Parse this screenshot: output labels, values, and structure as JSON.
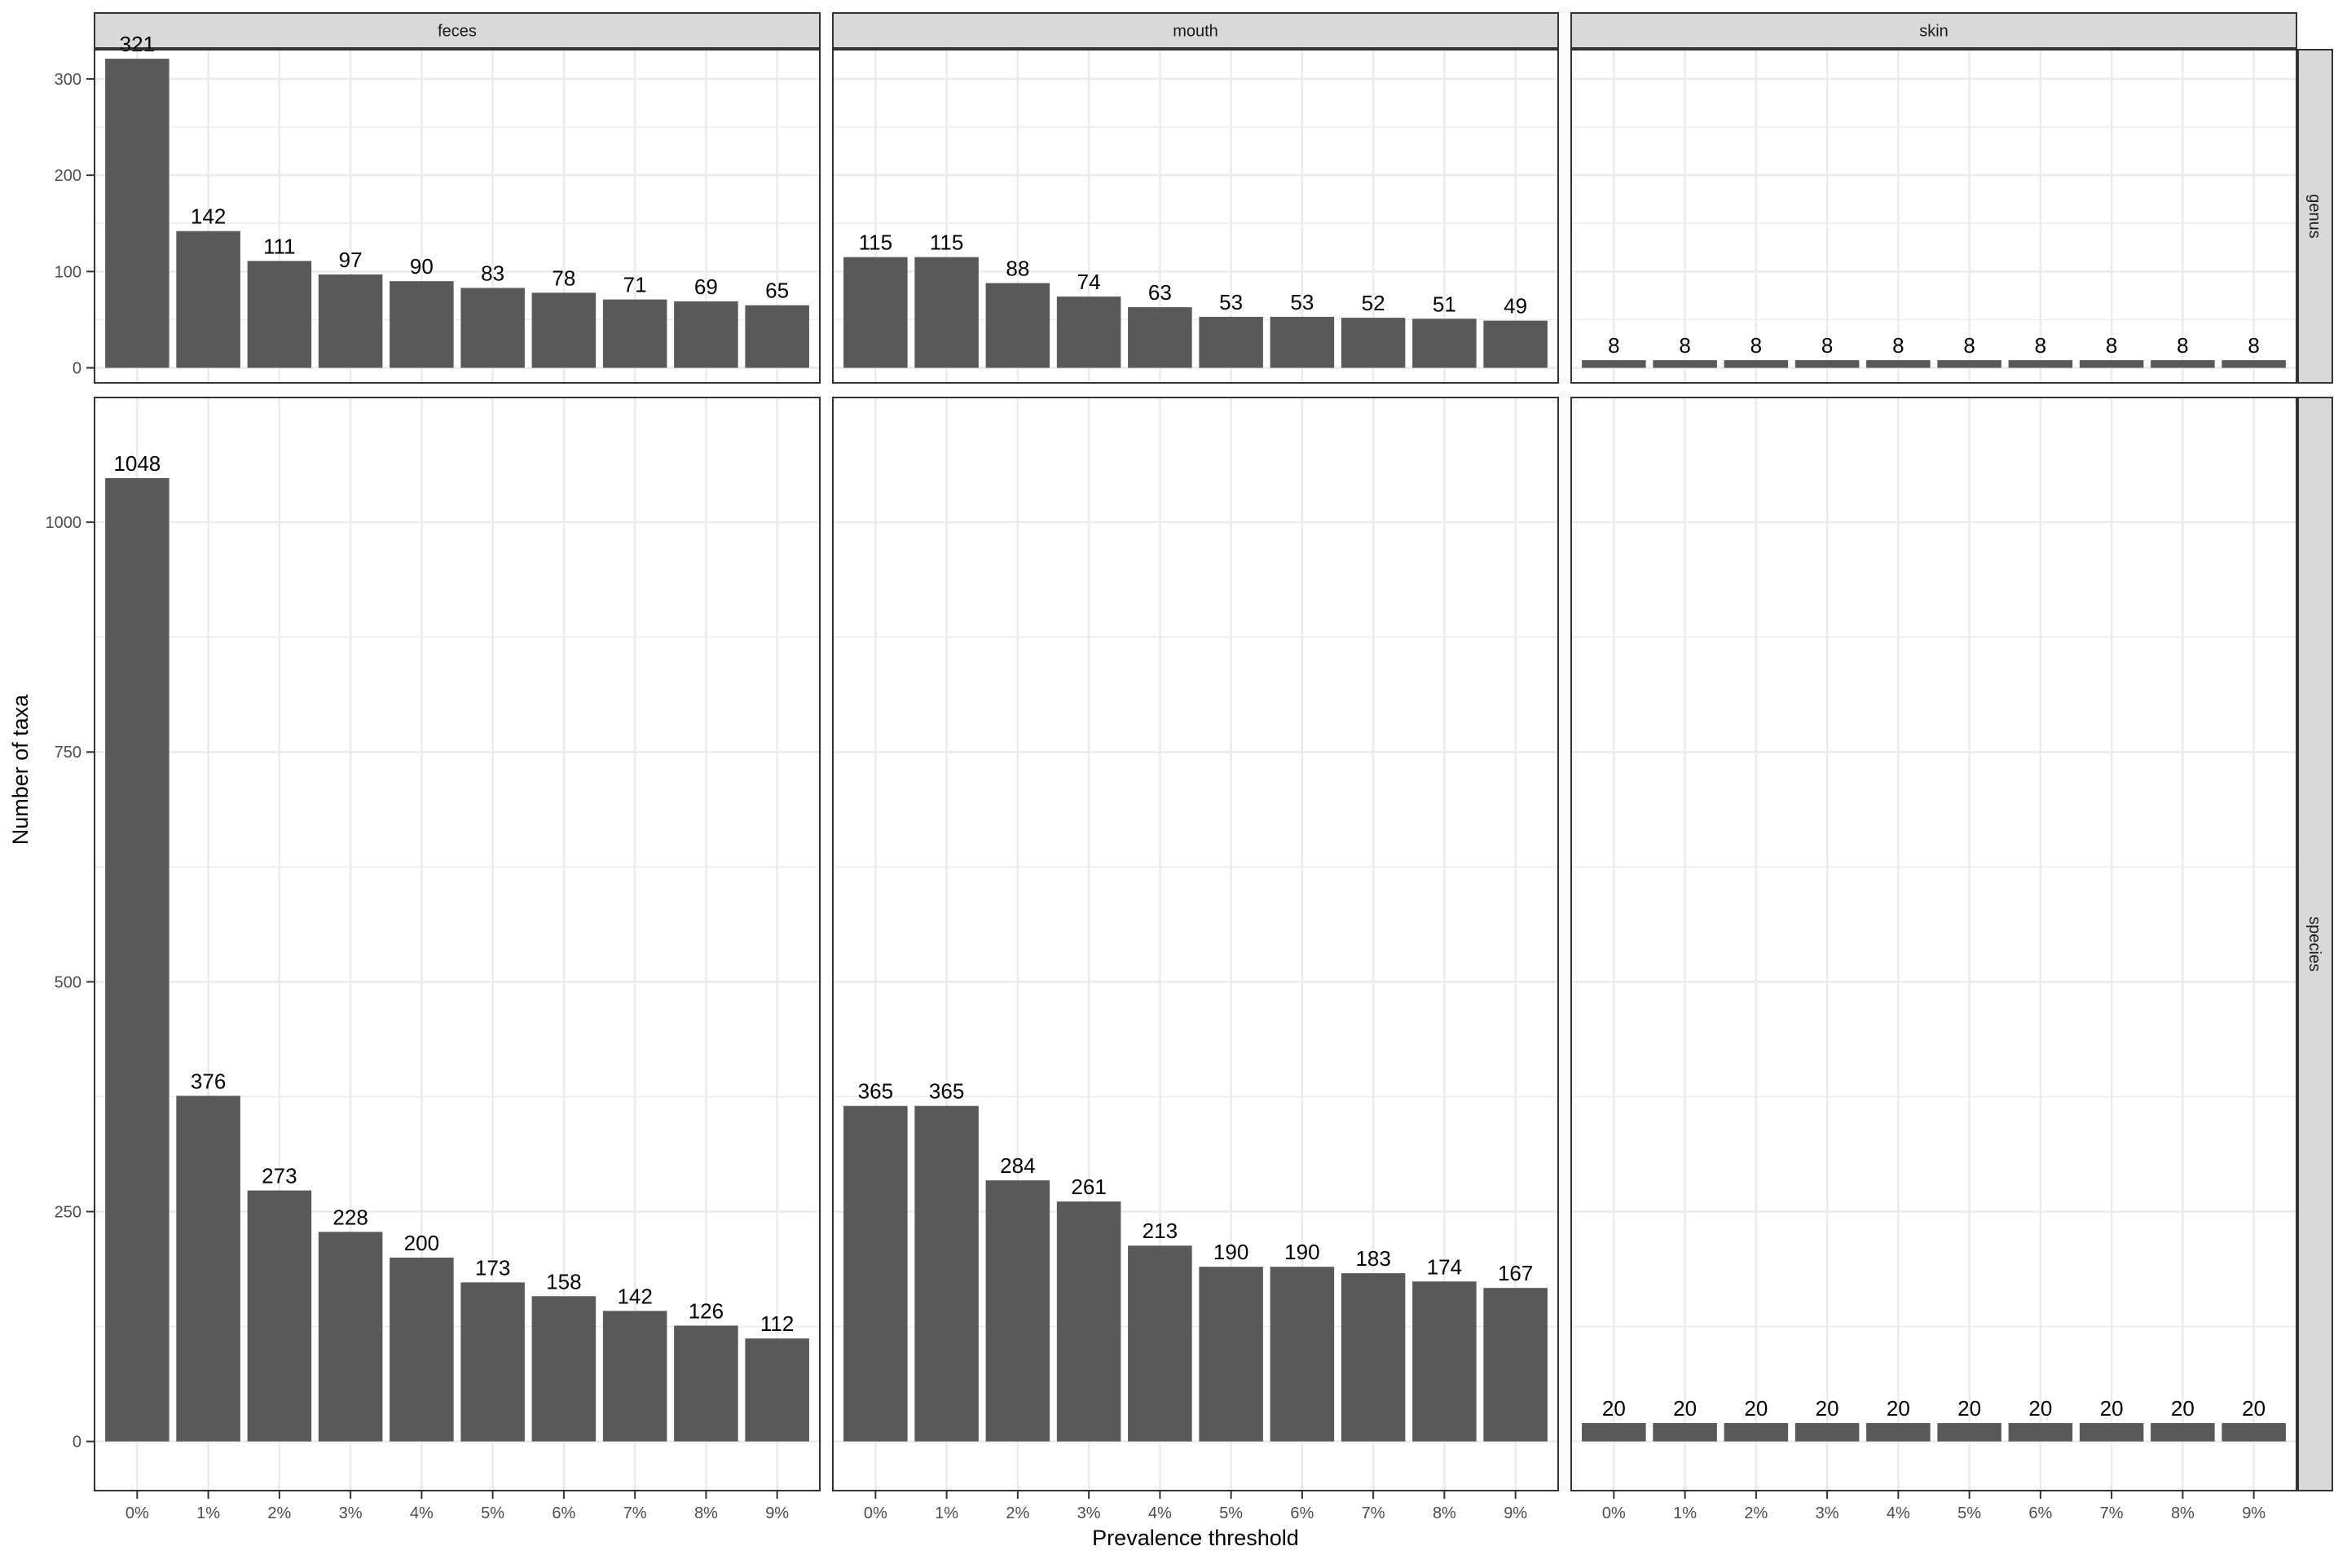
{
  "chart_data": {
    "type": "bar",
    "layout": "facet_grid",
    "xlabel": "Prevalence threshold",
    "ylabel": "Number of taxa",
    "categories": [
      "0%",
      "1%",
      "2%",
      "3%",
      "4%",
      "5%",
      "6%",
      "7%",
      "8%",
      "9%"
    ],
    "columns": [
      "feces",
      "mouth",
      "skin"
    ],
    "rows": [
      {
        "strip": "genus",
        "ylim": [
          0,
          320
        ],
        "ticks": [
          0,
          100,
          200,
          300
        ],
        "panels": [
          {
            "column": "feces",
            "values": [
              321,
              142,
              111,
              97,
              90,
              83,
              78,
              71,
              69,
              65
            ]
          },
          {
            "column": "mouth",
            "values": [
              115,
              115,
              88,
              74,
              63,
              53,
              53,
              52,
              51,
              49
            ]
          },
          {
            "column": "skin",
            "values": [
              8,
              8,
              8,
              8,
              8,
              8,
              8,
              8,
              8,
              8
            ]
          }
        ]
      },
      {
        "strip": "species",
        "ylim": [
          0,
          1100
        ],
        "ticks": [
          0,
          250,
          500,
          750,
          1000
        ],
        "panels": [
          {
            "column": "feces",
            "values": [
              1048,
              376,
              273,
              228,
              200,
              173,
              158,
              142,
              126,
              112
            ]
          },
          {
            "column": "mouth",
            "values": [
              365,
              365,
              284,
              261,
              213,
              190,
              190,
              183,
              174,
              167
            ]
          },
          {
            "column": "skin",
            "values": [
              20,
              20,
              20,
              20,
              20,
              20,
              20,
              20,
              20,
              20
            ]
          }
        ]
      }
    ],
    "grid": true,
    "legend": "none",
    "bar_color": "#595959",
    "strip_color": "#d9d9d9",
    "panel_border_color": "#333333",
    "grid_color": "#ebebeb"
  }
}
